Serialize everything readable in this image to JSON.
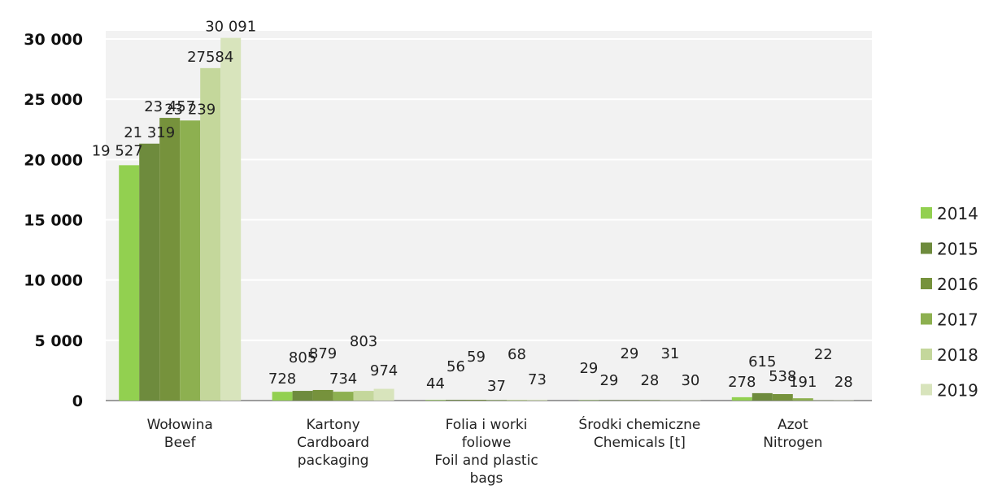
{
  "chart_data": {
    "type": "bar",
    "categories": [
      {
        "lines": [
          "Wołowina",
          "Beef"
        ]
      },
      {
        "lines": [
          "Kartony",
          "Cardboard",
          "packaging"
        ]
      },
      {
        "lines": [
          "Folia i worki",
          "foliowe",
          "Foil and plastic",
          "bags"
        ]
      },
      {
        "lines": [
          "Środki chemiczne",
          "Chemicals [t]"
        ]
      },
      {
        "lines": [
          "Azot",
          "Nitrogen"
        ]
      }
    ],
    "series": [
      {
        "name": "2014",
        "color": "#92d050",
        "values": [
          19527,
          728,
          44,
          29,
          278
        ],
        "labels": [
          "19 527",
          "728",
          "44",
          "29",
          "278"
        ]
      },
      {
        "name": "2015",
        "color": "#6e8b3d",
        "values": [
          21319,
          805,
          56,
          29,
          615
        ],
        "labels": [
          "21 319",
          "805",
          "56",
          "29",
          "615"
        ]
      },
      {
        "name": "2016",
        "color": "#76923c",
        "values": [
          23457,
          879,
          59,
          29,
          538
        ],
        "labels": [
          "23 457",
          "879",
          "59",
          "29",
          "538"
        ]
      },
      {
        "name": "2017",
        "color": "#8db050",
        "values": [
          23239,
          734,
          37,
          28,
          191
        ],
        "labels": [
          "23 239",
          "734",
          "37",
          "28",
          "191"
        ]
      },
      {
        "name": "2018",
        "color": "#c4d79b",
        "values": [
          27584,
          803,
          68,
          31,
          22
        ],
        "labels": [
          "27584",
          "803",
          "68",
          "31",
          "22"
        ]
      },
      {
        "name": "2019",
        "color": "#d8e4bc",
        "values": [
          30091,
          974,
          73,
          30,
          28
        ],
        "labels": [
          "30 091",
          "974",
          "73",
          "30",
          "28"
        ]
      }
    ],
    "y_ticks": [
      {
        "value": 0,
        "label": "0"
      },
      {
        "value": 5000,
        "label": "5 000"
      },
      {
        "value": 10000,
        "label": "10 000"
      },
      {
        "value": 15000,
        "label": "15 000"
      },
      {
        "value": 20000,
        "label": "20 000"
      },
      {
        "value": 25000,
        "label": "25 000"
      },
      {
        "value": 30000,
        "label": "30 000"
      }
    ],
    "ylim": [
      0,
      30000
    ],
    "grid": true,
    "legend_position": "right",
    "title": "",
    "xlabel": "",
    "ylabel": "",
    "plot_background": "#f2f2f2",
    "gridline_color": "#ffffff"
  }
}
